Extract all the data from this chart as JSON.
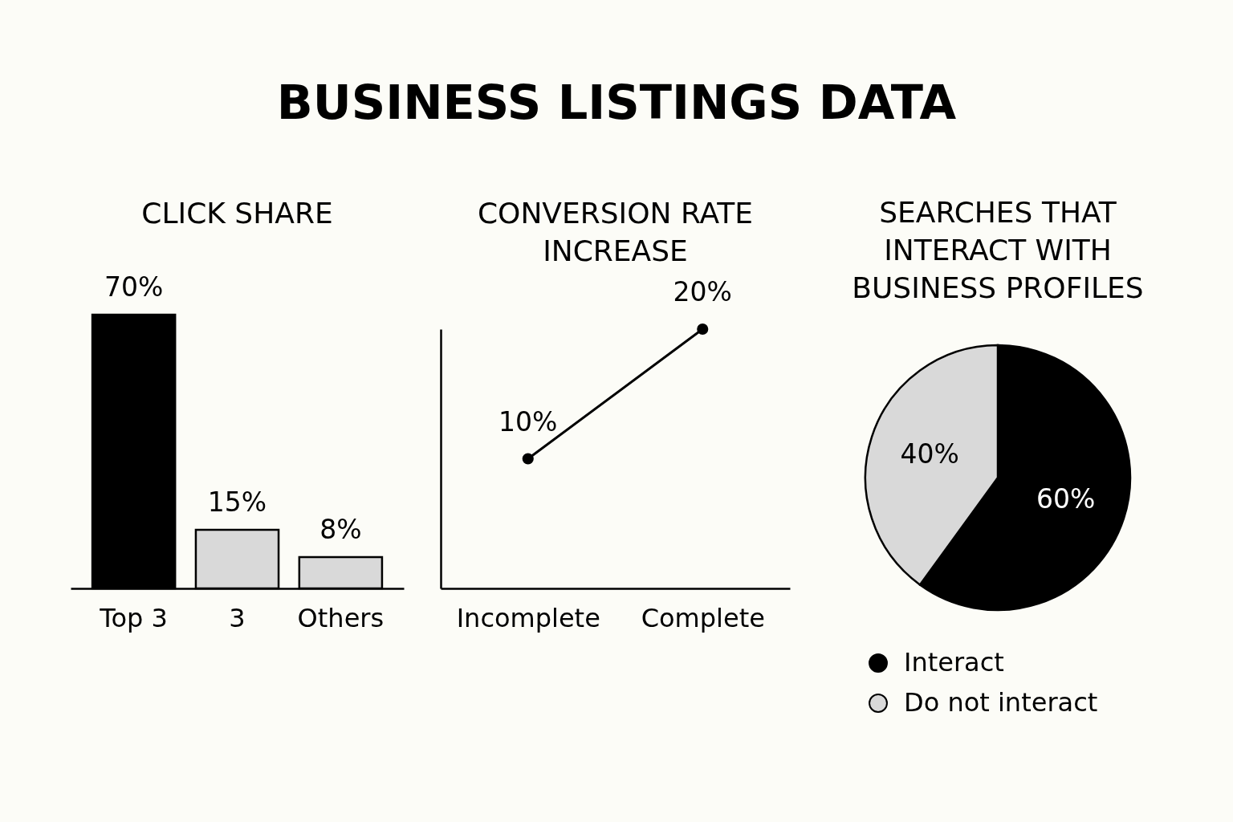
{
  "chart_data": [
    {
      "type": "other",
      "title": "BUSINESS LISTINGS DATA"
    },
    {
      "type": "bar",
      "title": "CLICK SHARE",
      "categories": [
        "Top 3",
        "3",
        "Others"
      ],
      "values": [
        70,
        15,
        8
      ],
      "colors": [
        "#000000",
        "#d9d9d9",
        "#d9d9d9"
      ],
      "value_labels": [
        "70%",
        "15%",
        "8%"
      ],
      "tick_labels": "x"
    },
    {
      "type": "line",
      "title": "CONVERSION RATE INCREASE",
      "categories": [
        "Incomplete",
        "Complete"
      ],
      "values": [
        10,
        20
      ],
      "color": "#000000",
      "marker": "circle",
      "value_labels": [
        "10%",
        "20%"
      ],
      "tick_labels": "x"
    },
    {
      "type": "pie",
      "title": "SEARCHES THAT INTERACT WITH BUSINESS PROFILES",
      "categories": [
        "Interact",
        "Do not interact"
      ],
      "values": [
        60,
        40
      ],
      "colors": [
        "#000000",
        "#d9d9d9"
      ],
      "value_labels": [
        "60%",
        "40%"
      ],
      "legend": "bottom"
    }
  ]
}
